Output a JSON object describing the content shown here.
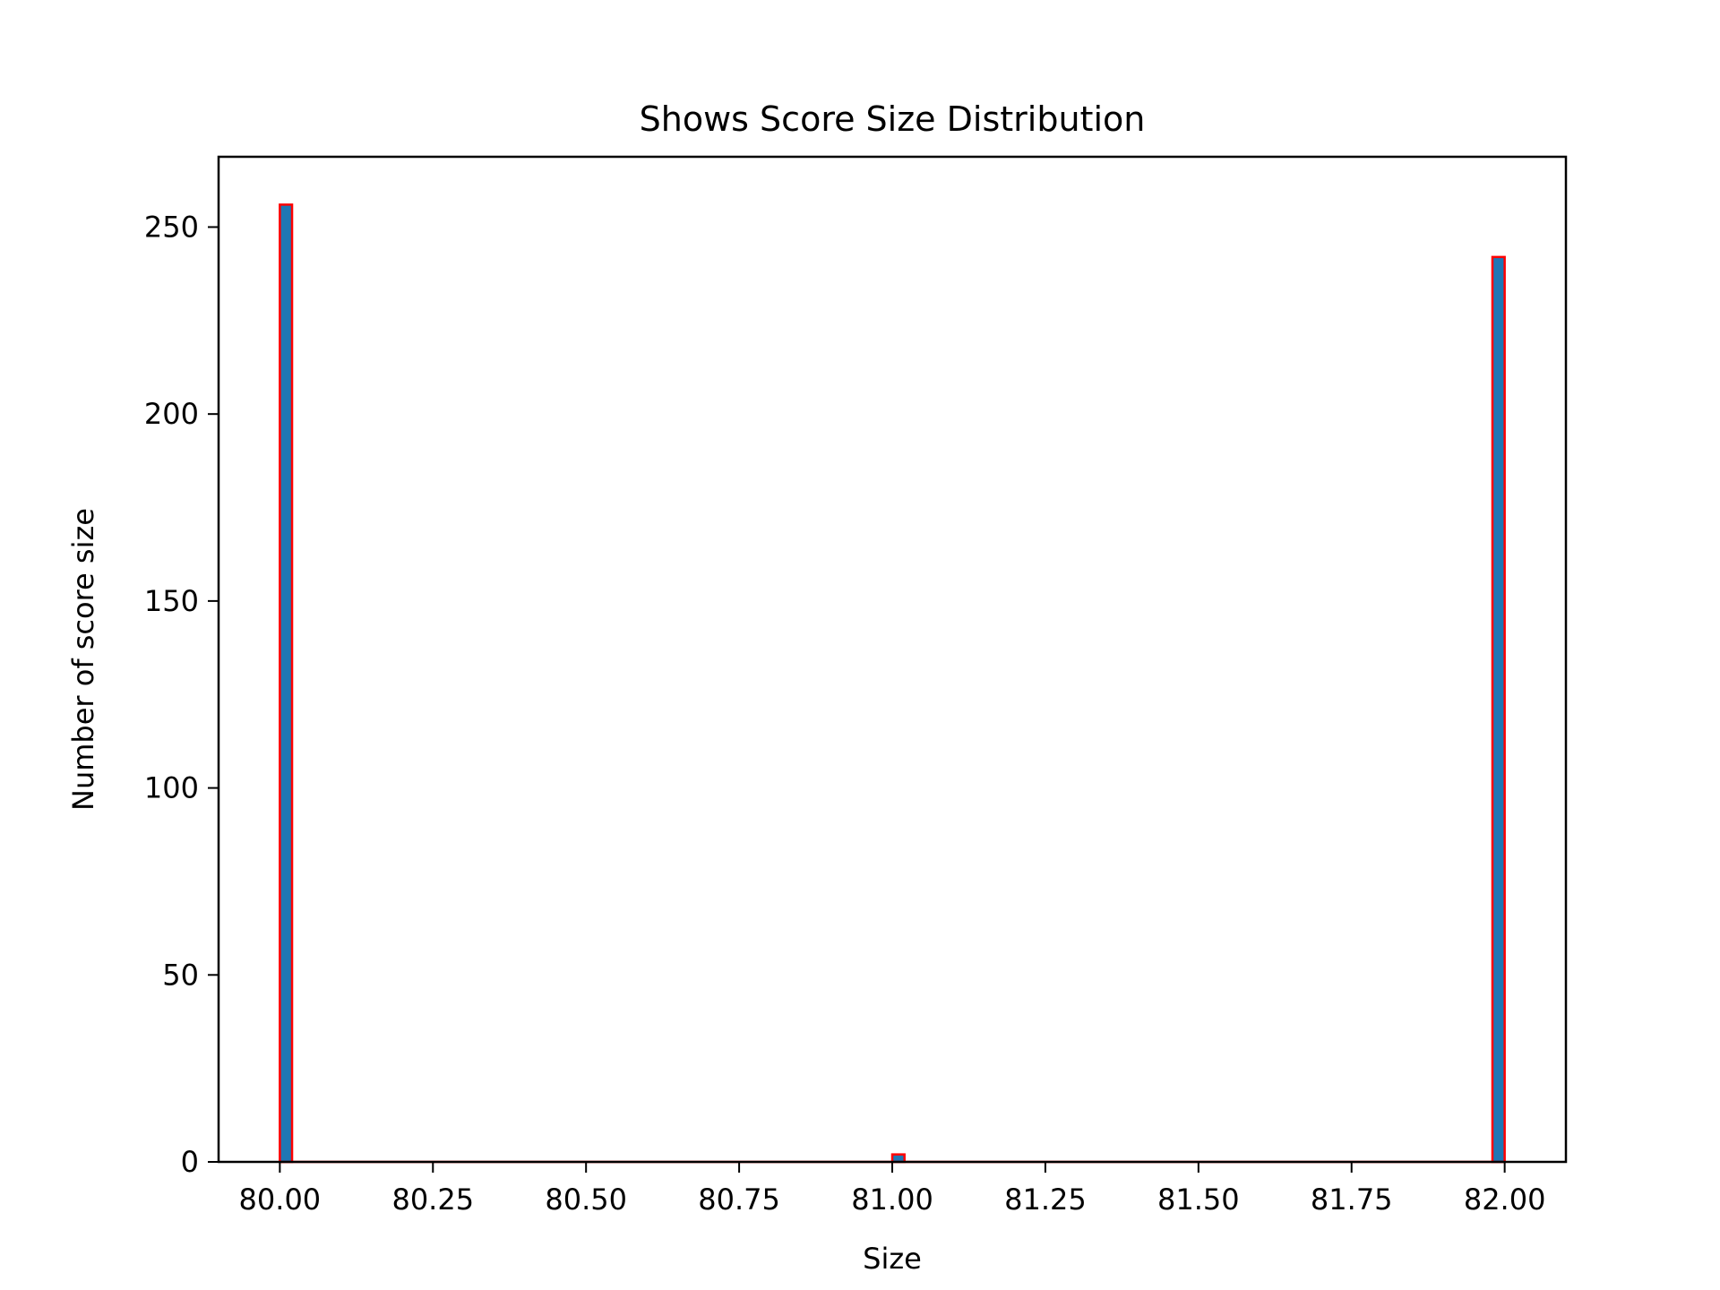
{
  "chart_data": {
    "type": "bar",
    "title": "Shows Score Size Distribution",
    "xlabel": "Size",
    "ylabel": "Number of score size",
    "xlim": [
      79.9,
      82.1
    ],
    "ylim": [
      0,
      268.8
    ],
    "xticks": [
      80.0,
      80.25,
      80.5,
      80.75,
      81.0,
      81.25,
      81.5,
      81.75,
      82.0
    ],
    "xtick_labels": [
      "80.00",
      "80.25",
      "80.50",
      "80.75",
      "81.00",
      "81.25",
      "81.50",
      "81.75",
      "82.00"
    ],
    "yticks": [
      0,
      50,
      100,
      150,
      200,
      250
    ],
    "ytick_labels": [
      "0",
      "50",
      "100",
      "150",
      "200",
      "250"
    ],
    "bin_width": 0.02,
    "bins": [
      {
        "x0": 80.0,
        "x1": 80.02,
        "count": 256
      },
      {
        "x0": 81.0,
        "x1": 81.02,
        "count": 2
      },
      {
        "x0": 81.98,
        "x1": 82.0,
        "count": 242
      }
    ],
    "fill_color": "#1f77b4",
    "edge_color": "#ff0000",
    "grid": false
  }
}
